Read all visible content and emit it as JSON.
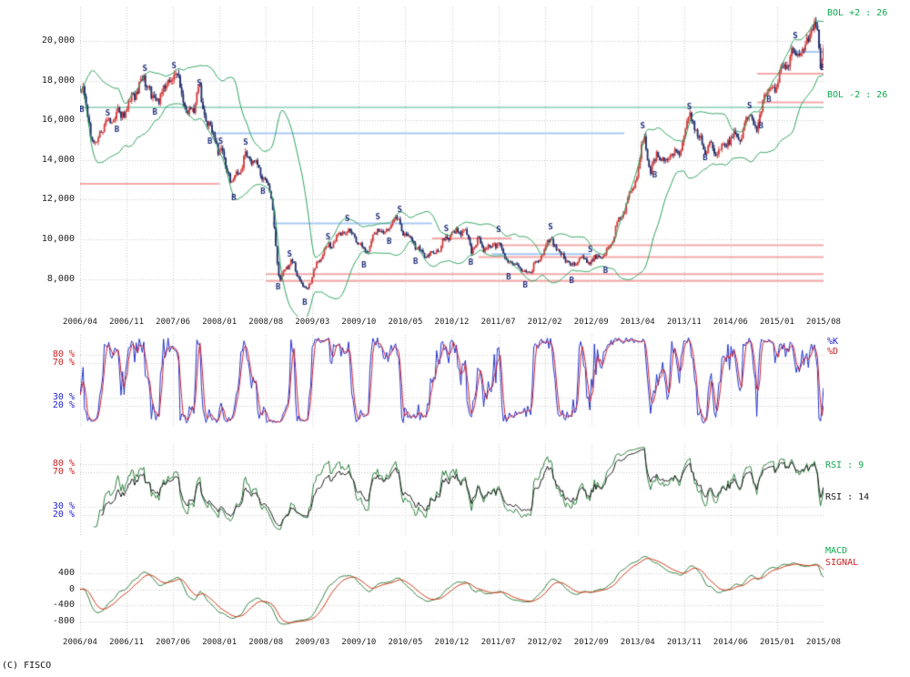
{
  "copyright": "(C) FISCO",
  "chart_data": {
    "type": "candlestick",
    "title": "",
    "x_ticks": [
      "2006/04",
      "2006/11",
      "2007/06",
      "2008/01",
      "2008/08",
      "2009/03",
      "2009/10",
      "2010/05",
      "2010/12",
      "2011/07",
      "2012/02",
      "2012/09",
      "2013/04",
      "2013/11",
      "2014/06",
      "2015/01",
      "2015/08"
    ],
    "panels": {
      "price": {
        "y_ticks": [
          20000,
          18000,
          16000,
          14000,
          12000,
          10000,
          8000
        ],
        "y_tick_labels": [
          "20,000",
          "18,000",
          "16,000",
          "14,000",
          "12,000",
          "10,000",
          "8,000"
        ],
        "range": [
          6100,
          21700
        ],
        "bollinger_period": 26,
        "bollinger_upper_label": "BOL +2 : 26",
        "bollinger_lower_label": "BOL -2 : 26",
        "price_keypoints": [
          [
            0,
            17400
          ],
          [
            1,
            16900
          ],
          [
            2,
            14800
          ],
          [
            3,
            15500
          ],
          [
            4,
            15700
          ],
          [
            6,
            16400
          ],
          [
            8,
            17200
          ],
          [
            10,
            18100
          ],
          [
            11,
            17000
          ],
          [
            13,
            17600
          ],
          [
            14,
            18200
          ],
          [
            15,
            18050
          ],
          [
            16,
            16300
          ],
          [
            17,
            16700
          ],
          [
            18,
            17300
          ],
          [
            19,
            16000
          ],
          [
            20,
            15400
          ],
          [
            22,
            13700
          ],
          [
            23,
            12600
          ],
          [
            24,
            13600
          ],
          [
            25,
            14300
          ],
          [
            26,
            14000
          ],
          [
            27,
            13300
          ],
          [
            28,
            13000
          ],
          [
            29,
            11700
          ],
          [
            30,
            7900
          ],
          [
            31,
            8600
          ],
          [
            32,
            8750
          ],
          [
            33,
            8000
          ],
          [
            34,
            7450
          ],
          [
            35,
            8200
          ],
          [
            36,
            8900
          ],
          [
            37,
            9400
          ],
          [
            38,
            9800
          ],
          [
            39,
            10300
          ],
          [
            40,
            10550
          ],
          [
            41,
            10200
          ],
          [
            42,
            9700
          ],
          [
            43,
            9350
          ],
          [
            44,
            10200
          ],
          [
            45,
            10600
          ],
          [
            46,
            10100
          ],
          [
            47,
            10900
          ],
          [
            48,
            11100
          ],
          [
            49,
            10300
          ],
          [
            50,
            9900
          ],
          [
            51,
            9400
          ],
          [
            52,
            9150
          ],
          [
            53,
            9400
          ],
          [
            54,
            9500
          ],
          [
            55,
            9900
          ],
          [
            56,
            10250
          ],
          [
            57,
            10450
          ],
          [
            58,
            10600
          ],
          [
            59,
            9400
          ],
          [
            60,
            9850
          ],
          [
            61,
            9550
          ],
          [
            62,
            9700
          ],
          [
            63,
            10000
          ],
          [
            64,
            9000
          ],
          [
            65,
            8700
          ],
          [
            66,
            8800
          ],
          [
            67,
            8400
          ],
          [
            68,
            8500
          ],
          [
            69,
            8800
          ],
          [
            70,
            9600
          ],
          [
            71,
            10100
          ],
          [
            72,
            9550
          ],
          [
            73,
            9000
          ],
          [
            74,
            8600
          ],
          [
            75,
            8950
          ],
          [
            76,
            9100
          ],
          [
            77,
            8900
          ],
          [
            78,
            9050
          ],
          [
            79,
            8950
          ],
          [
            80,
            9900
          ],
          [
            81,
            10950
          ],
          [
            82,
            11400
          ],
          [
            83,
            12400
          ],
          [
            84,
            13250
          ],
          [
            85,
            15600
          ],
          [
            86,
            13300
          ],
          [
            87,
            14400
          ],
          [
            88,
            13500
          ],
          [
            89,
            14500
          ],
          [
            90,
            14300
          ],
          [
            91,
            15400
          ],
          [
            92,
            16300
          ],
          [
            93,
            15000
          ],
          [
            94,
            14850
          ],
          [
            95,
            14700
          ],
          [
            96,
            14300
          ],
          [
            97,
            14650
          ],
          [
            98,
            15150
          ],
          [
            99,
            15350
          ],
          [
            100,
            15500
          ],
          [
            101,
            16200
          ],
          [
            102,
            15000
          ],
          [
            103,
            17400
          ],
          [
            104,
            17850
          ],
          [
            105,
            17650
          ],
          [
            106,
            18800
          ],
          [
            107,
            18900
          ],
          [
            108,
            19900
          ],
          [
            109,
            19650
          ],
          [
            110,
            20700
          ],
          [
            111,
            20300
          ],
          [
            111.5,
            18900
          ],
          [
            112,
            19500
          ]
        ],
        "signals": [
          [
            0.3,
            "B"
          ],
          [
            4.2,
            "S"
          ],
          [
            5.6,
            "B"
          ],
          [
            9.8,
            "S"
          ],
          [
            11.3,
            "B"
          ],
          [
            14.2,
            "S"
          ],
          [
            18.0,
            "S"
          ],
          [
            19.6,
            "B"
          ],
          [
            21.2,
            "S"
          ],
          [
            23.2,
            "B"
          ],
          [
            25.0,
            "S"
          ],
          [
            27.6,
            "B"
          ],
          [
            29.9,
            "B"
          ],
          [
            31.6,
            "S"
          ],
          [
            33.9,
            "B"
          ],
          [
            37.4,
            "S"
          ],
          [
            40.3,
            "S"
          ],
          [
            42.8,
            "B"
          ],
          [
            44.9,
            "S"
          ],
          [
            46.6,
            "B"
          ],
          [
            48.2,
            "S"
          ],
          [
            50.6,
            "B"
          ],
          [
            55.2,
            "S"
          ],
          [
            58.9,
            "B"
          ],
          [
            63.1,
            "S"
          ],
          [
            64.6,
            "B"
          ],
          [
            67.1,
            "B"
          ],
          [
            70.9,
            "S"
          ],
          [
            74.1,
            "B"
          ],
          [
            76.9,
            "S"
          ],
          [
            79.2,
            "B"
          ],
          [
            84.8,
            "S"
          ],
          [
            86.6,
            "B"
          ],
          [
            91.8,
            "S"
          ],
          [
            94.2,
            "B"
          ],
          [
            100.9,
            "S"
          ],
          [
            102.6,
            "B"
          ],
          [
            103.8,
            "B"
          ],
          [
            107.8,
            "S"
          ],
          [
            111.9,
            "B"
          ]
        ],
        "levels": [
          {
            "price": 12800,
            "m0": 0,
            "m1": 21,
            "color": "level_pink"
          },
          {
            "price": 16650,
            "m0": 0,
            "m1": 112,
            "color": "level_teal"
          },
          {
            "price": 15350,
            "m0": 20,
            "m1": 82,
            "color": "level_blue"
          },
          {
            "price": 10800,
            "m0": 29,
            "m1": 53,
            "color": "level_blue"
          },
          {
            "price": 10050,
            "m0": 53,
            "m1": 65,
            "color": "level_pink"
          },
          {
            "price": 9250,
            "m0": 62,
            "m1": 77,
            "color": "level_blue"
          },
          {
            "price": 9700,
            "m0": 62,
            "m1": 112,
            "color": "level_pink"
          },
          {
            "price": 9100,
            "m0": 60,
            "m1": 112,
            "color": "level_pink"
          },
          {
            "price": 8250,
            "m0": 28,
            "m1": 112,
            "color": "level_pink"
          },
          {
            "price": 7900,
            "m0": 28,
            "m1": 112,
            "color": "level_pink"
          },
          {
            "price": 18350,
            "m0": 102,
            "m1": 112,
            "color": "level_pink"
          },
          {
            "price": 16900,
            "m0": 102,
            "m1": 112,
            "color": "level_pink"
          },
          {
            "price": 19450,
            "m0": 107,
            "m1": 112,
            "color": "level_blue"
          }
        ]
      },
      "stochastic": {
        "k_label": "%K",
        "d_label": "%D",
        "y_ticks": [
          80,
          70,
          30,
          20
        ],
        "y_tick_labels": [
          "80 %",
          "70 %",
          "30 %",
          "20 %"
        ],
        "y_tick_colors": [
          "label_red",
          "label_red",
          "label_blue",
          "label_blue"
        ],
        "range": [
          0,
          100
        ]
      },
      "rsi": {
        "labels": [
          "RSI : 9",
          "RSI : 14"
        ],
        "periods": [
          9,
          14
        ],
        "y_ticks": [
          80,
          70,
          30,
          20
        ],
        "y_tick_labels": [
          "80 %",
          "70 %",
          "30 %",
          "20 %"
        ],
        "y_tick_colors": [
          "label_red",
          "label_red",
          "label_blue",
          "label_blue"
        ],
        "range": [
          0,
          100
        ]
      },
      "macd": {
        "macd_label": "MACD",
        "signal_label": "SIGNAL",
        "y_ticks": [
          400,
          0,
          -400,
          -800
        ],
        "y_tick_labels": [
          "400",
          "0",
          "-400",
          "-800"
        ],
        "range": [
          -1150,
          950
        ]
      }
    },
    "colors": {
      "candle_up": "#d23b3b",
      "candle_down": "#1f2d69",
      "bollinger": "#2fa35f",
      "grid": "#c6c6c6",
      "label_red": "#cc2222",
      "label_blue": "#2222cc",
      "label_green": "#0faa50",
      "label_black": "#1a1a1a",
      "stoch_k": "#2233cc",
      "stoch_d": "#cc2233",
      "rsi_9": "#2f8040",
      "rsi_14": "#1a1a1a",
      "macd": "#2f8040",
      "signal": "#cc3311",
      "signal_letter": "#1a2a77",
      "level_pink": "#f6a8a8",
      "level_blue": "#a9c8f4",
      "level_teal": "#a6d9c6"
    }
  }
}
